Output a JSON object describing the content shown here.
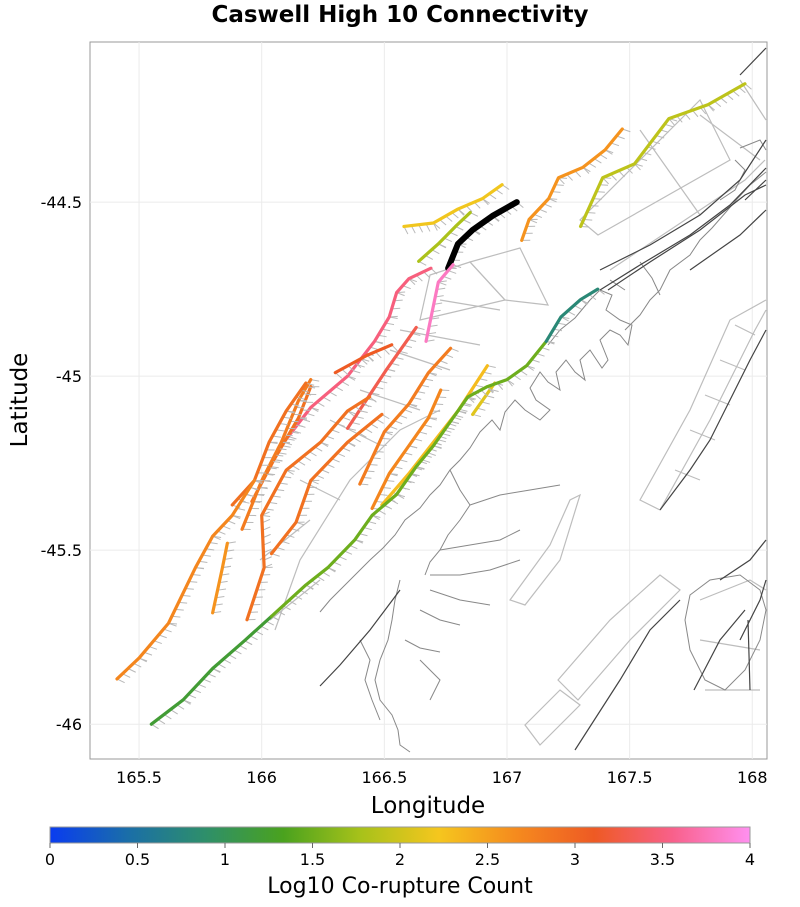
{
  "title": "Caswell High 10 Connectivity",
  "map": {
    "xlabel": "Longitude",
    "ylabel": "Latitude",
    "xlim": [
      165.3,
      168.06
    ],
    "ylim": [
      -46.1,
      -44.04
    ],
    "xticks": [
      "165.5",
      "166",
      "166.5",
      "167",
      "167.5",
      "168"
    ],
    "xtick_values": [
      165.5,
      166,
      166.5,
      167,
      167.5,
      168
    ],
    "yticks": [
      "-44.5",
      "-45",
      "-45.5",
      "-46"
    ],
    "ytick_values": [
      -44.5,
      -45,
      -45.5,
      -46
    ],
    "grid": true,
    "source_fault": "Caswell High",
    "colorbar": {
      "label": "Log10 Co-rupture Count",
      "ticks": [
        "0",
        "0.5",
        "1",
        "1.5",
        "2",
        "2.5",
        "3",
        "3.5",
        "4"
      ],
      "tick_values": [
        0,
        0.5,
        1,
        1.5,
        2,
        2.5,
        3,
        3.5,
        4
      ],
      "range": [
        0,
        4
      ],
      "colors": [
        "#0a3cf0",
        "#1a6ea8",
        "#2e8f6a",
        "#4aa21e",
        "#a8c21a",
        "#f5c61e",
        "#f58a1e",
        "#ee5a24",
        "#f8608a",
        "#ff90f0"
      ]
    },
    "faults": [
      {
        "name": "caswell-high-source",
        "value": null,
        "color": "#000000",
        "coords": [
          [
            166.76,
            -44.69
          ],
          [
            166.8,
            -44.62
          ],
          [
            166.86,
            -44.58
          ],
          [
            166.94,
            -44.54
          ],
          [
            167.04,
            -44.5
          ]
        ]
      },
      {
        "name": "fault-a",
        "value": 2.2,
        "coords": [
          [
            166.58,
            -44.57
          ],
          [
            166.7,
            -44.56
          ],
          [
            166.8,
            -44.52
          ],
          [
            166.9,
            -44.49
          ],
          [
            166.98,
            -44.45
          ]
        ]
      },
      {
        "name": "fault-b",
        "value": 2.6,
        "coords": [
          [
            167.06,
            -44.61
          ],
          [
            167.09,
            -44.55
          ],
          [
            167.17,
            -44.49
          ],
          [
            167.21,
            -44.43
          ],
          [
            167.31,
            -44.4
          ],
          [
            167.4,
            -44.35
          ],
          [
            167.47,
            -44.29
          ]
        ]
      },
      {
        "name": "fault-c",
        "value": 1.9,
        "coords": [
          [
            167.3,
            -44.57
          ],
          [
            167.39,
            -44.43
          ],
          [
            167.52,
            -44.39
          ],
          [
            167.66,
            -44.26
          ],
          [
            167.82,
            -44.22
          ],
          [
            167.97,
            -44.16
          ]
        ]
      },
      {
        "name": "fault-d",
        "value": 1.8,
        "coords": [
          [
            166.64,
            -44.67
          ],
          [
            166.72,
            -44.62
          ],
          [
            166.79,
            -44.57
          ],
          [
            166.85,
            -44.53
          ]
        ]
      },
      {
        "name": "fault-e",
        "value": 3.8,
        "coords": [
          [
            166.67,
            -44.9
          ],
          [
            166.72,
            -44.73
          ],
          [
            166.78,
            -44.68
          ]
        ]
      },
      {
        "name": "fault-f",
        "value": 3.5,
        "coords": [
          [
            166.09,
            -45.19
          ],
          [
            166.2,
            -45.09
          ],
          [
            166.35,
            -45.0
          ],
          [
            166.46,
            -44.9
          ],
          [
            166.52,
            -44.83
          ],
          [
            166.55,
            -44.76
          ],
          [
            166.6,
            -44.72
          ],
          [
            166.69,
            -44.69
          ]
        ]
      },
      {
        "name": "fault-g",
        "value": 3.3,
        "coords": [
          [
            166.35,
            -45.15
          ],
          [
            166.51,
            -44.98
          ],
          [
            166.63,
            -44.86
          ]
        ]
      },
      {
        "name": "fault-h",
        "value": 3.1,
        "coords": [
          [
            166.3,
            -44.99
          ],
          [
            166.43,
            -44.94
          ],
          [
            166.53,
            -44.91
          ]
        ]
      },
      {
        "name": "fault-i",
        "value": 2.9,
        "coords": [
          [
            165.96,
            -45.36
          ],
          [
            166.05,
            -45.24
          ],
          [
            166.15,
            -45.12
          ],
          [
            166.2,
            -45.03
          ]
        ]
      },
      {
        "name": "fault-j",
        "value": 2.8,
        "coords": [
          [
            165.92,
            -45.44
          ],
          [
            166.0,
            -45.3
          ],
          [
            166.08,
            -45.19
          ],
          [
            166.15,
            -45.07
          ],
          [
            166.2,
            -45.01
          ]
        ]
      },
      {
        "name": "fault-k",
        "value": 2.9,
        "coords": [
          [
            165.88,
            -45.37
          ],
          [
            165.97,
            -45.3
          ],
          [
            166.03,
            -45.19
          ],
          [
            166.1,
            -45.1
          ],
          [
            166.18,
            -45.02
          ]
        ]
      },
      {
        "name": "fault-l",
        "value": 2.7,
        "coords": [
          [
            165.41,
            -45.87
          ],
          [
            165.5,
            -45.81
          ],
          [
            165.62,
            -45.71
          ],
          [
            165.73,
            -45.55
          ],
          [
            165.8,
            -45.46
          ],
          [
            165.88,
            -45.4
          ],
          [
            165.97,
            -45.3
          ]
        ]
      },
      {
        "name": "fault-m",
        "value": 2.6,
        "coords": [
          [
            165.8,
            -45.68
          ],
          [
            165.84,
            -45.55
          ],
          [
            165.86,
            -45.48
          ]
        ]
      },
      {
        "name": "fault-n",
        "value": 2.9,
        "coords": [
          [
            165.94,
            -45.7
          ],
          [
            166.01,
            -45.55
          ],
          [
            166.0,
            -45.4
          ],
          [
            166.1,
            -45.27
          ],
          [
            166.24,
            -45.19
          ],
          [
            166.35,
            -45.1
          ],
          [
            166.44,
            -45.06
          ]
        ]
      },
      {
        "name": "fault-o",
        "value": 2.9,
        "coords": [
          [
            166.04,
            -45.51
          ],
          [
            166.14,
            -45.42
          ],
          [
            166.2,
            -45.3
          ],
          [
            166.35,
            -45.19
          ],
          [
            166.49,
            -45.11
          ]
        ]
      },
      {
        "name": "fault-p",
        "value": 2.8,
        "coords": [
          [
            166.4,
            -45.31
          ],
          [
            166.5,
            -45.16
          ],
          [
            166.6,
            -45.08
          ],
          [
            166.68,
            -44.99
          ],
          [
            166.77,
            -44.92
          ]
        ]
      },
      {
        "name": "fault-q",
        "value": 2.7,
        "coords": [
          [
            166.45,
            -45.38
          ],
          [
            166.52,
            -45.28
          ],
          [
            166.6,
            -45.2
          ],
          [
            166.68,
            -45.12
          ],
          [
            166.73,
            -45.04
          ]
        ]
      },
      {
        "name": "fault-r",
        "value": 2.3,
        "coords": [
          [
            166.49,
            -45.37
          ],
          [
            166.6,
            -45.28
          ],
          [
            166.7,
            -45.19
          ],
          [
            166.8,
            -45.1
          ],
          [
            166.92,
            -44.97
          ]
        ]
      },
      {
        "name": "fault-s",
        "value": 2.1,
        "coords": [
          [
            166.86,
            -45.11
          ],
          [
            166.95,
            -45.02
          ]
        ]
      },
      {
        "name": "fault-t",
        "value": 1.2,
        "coords": [
          [
            165.55,
            -46.0
          ],
          [
            165.68,
            -45.93
          ],
          [
            165.8,
            -45.84
          ],
          [
            165.93,
            -45.76
          ],
          [
            166.04,
            -45.69
          ]
        ]
      },
      {
        "name": "fault-u",
        "value": 1.5,
        "coords": [
          [
            166.04,
            -45.69
          ],
          [
            166.18,
            -45.6
          ],
          [
            166.27,
            -45.55
          ],
          [
            166.38,
            -45.47
          ],
          [
            166.45,
            -45.4
          ],
          [
            166.55,
            -45.34
          ],
          [
            166.63,
            -45.26
          ],
          [
            166.7,
            -45.2
          ],
          [
            166.77,
            -45.13
          ],
          [
            166.84,
            -45.06
          ],
          [
            166.92,
            -45.03
          ],
          [
            167.0,
            -45.01
          ],
          [
            167.08,
            -44.97
          ],
          [
            167.16,
            -44.9
          ]
        ]
      },
      {
        "name": "fault-v",
        "value": 0.8,
        "coords": [
          [
            167.16,
            -44.9
          ],
          [
            167.22,
            -44.83
          ],
          [
            167.3,
            -44.78
          ],
          [
            167.37,
            -44.75
          ]
        ]
      }
    ]
  }
}
